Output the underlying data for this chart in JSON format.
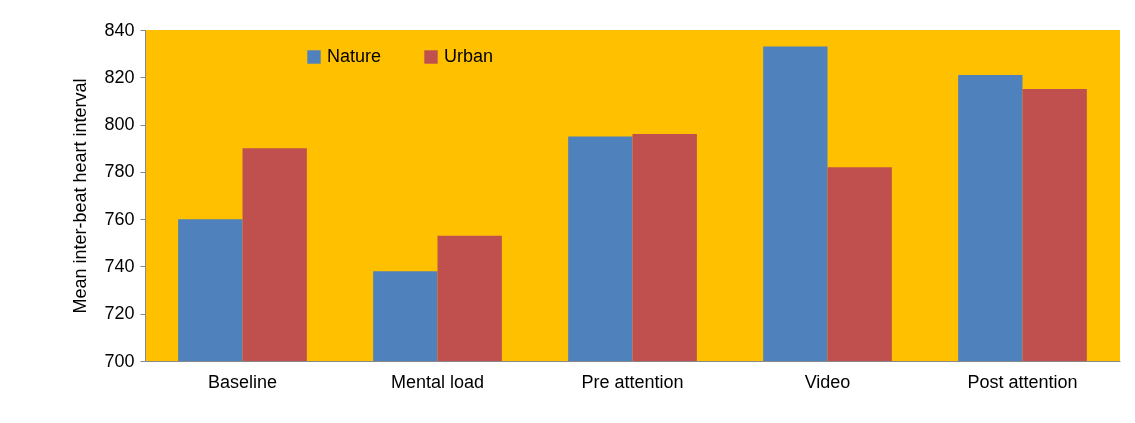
{
  "chart_data": {
    "type": "bar",
    "ylabel": "Mean inter-beat heart interval",
    "categories": [
      "Baseline",
      "Mental load",
      "Pre attention",
      "Video",
      "Post attention"
    ],
    "series": [
      {
        "name": "Nature",
        "color": "#4f81bd",
        "values": [
          760,
          738,
          795,
          833,
          821
        ]
      },
      {
        "name": "Urban",
        "color": "#c0504d",
        "values": [
          790,
          753,
          796,
          782,
          815
        ]
      }
    ],
    "ylim": [
      700,
      840
    ],
    "yticks": [
      700,
      720,
      740,
      760,
      780,
      800,
      820,
      840
    ],
    "grid": false,
    "legend": "top"
  }
}
